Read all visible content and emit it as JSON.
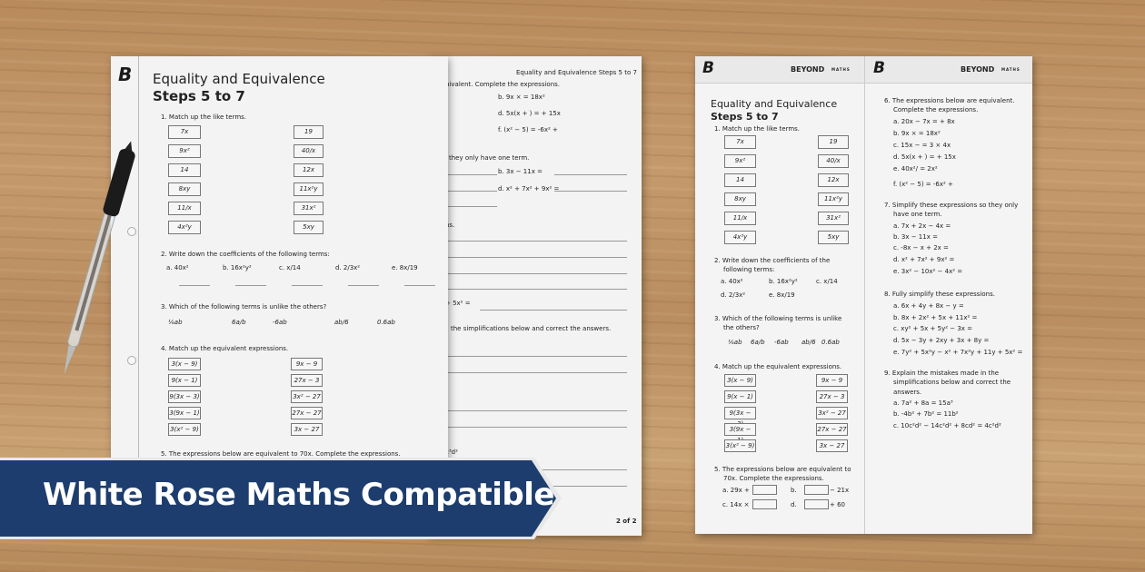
{
  "colors": {
    "banner": "#1d3d6e",
    "paper": "#f3f3f3",
    "wood": "#c49a6c"
  },
  "banner": {
    "text": "White Rose Maths Compatible"
  },
  "brand": {
    "logo": "B",
    "name": "BEYOND",
    "sub": "MATHS"
  },
  "front": {
    "title": "Equality and Equivalence",
    "subtitle": "Steps 5 to 7",
    "q1": "1.  Match up the like terms.",
    "q1_left": [
      "7x",
      "9x²",
      "14",
      "8xy",
      "11/x",
      "4x²y"
    ],
    "q1_right": [
      "19",
      "40/x",
      "12x",
      "11x²y",
      "31x²",
      "5xy"
    ],
    "q2": "2.  Write down the coefficients of the following terms:",
    "q2_terms": [
      "a.  40x²",
      "b.  16x²y²",
      "c.  x/14",
      "d.  2/3x²",
      "e.  8x/19"
    ],
    "q3": "3.  Which of the following terms is unlike the others?",
    "q3_terms": [
      "⅙ab",
      "6a/b",
      "-6ab",
      "ab/6",
      "0.6ab"
    ],
    "q4": "4.  Match up the equivalent expressions.",
    "q4_left": [
      "3(x − 9)",
      "9(x − 1)",
      "9(3x − 3)",
      "3(9x − 1)",
      "3(x² − 9)"
    ],
    "q4_right": [
      "9x − 9",
      "27x − 3",
      "3x² − 27",
      "27x − 27",
      "3x − 27"
    ],
    "q5": "5.  The expressions below are equivalent to 70x. Complete the expressions."
  },
  "back": {
    "header": "Equality and Equivalence Steps 5 to 7",
    "lines": [
      "uivalent. Complete the expressions.",
      "b.  9x ×      = 18x²",
      "d.  5x(x +      ) =      + 15x",
      "f.       (x² − 5) = -6x² +",
      "they only have one term.",
      "b.  3x − 11x =",
      "d.  x² + 7x² + 9x² =",
      "ns.",
      "+ 5x² =",
      "the simplifications below and correct the answers.",
      "c³d²"
    ],
    "page": "2 of 2"
  },
  "spread_left": {
    "title": "Equality and Equivalence",
    "subtitle": "Steps 5 to 7",
    "q1": "1.  Match up the like terms.",
    "q2a": "2.  Write down the coefficients of the",
    "q2b": "following terms:",
    "q2_terms": [
      "a.  40x²",
      "b.  16x²y²",
      "c.  x/14",
      "d.  2/3x²",
      "e.  8x/19"
    ],
    "q3a": "3.  Which of the following terms is unlike",
    "q3b": "the others?",
    "q4": "4.  Match up the equivalent expressions.",
    "q5a": "5.  The expressions below are equivalent to",
    "q5b": "70x. Complete the expressions.",
    "q5_items": [
      "a.  29x +",
      "b.",
      "− 21x",
      "c.  14x ×",
      "d.",
      "+ 60"
    ]
  },
  "spread_right": {
    "q6a": "6.  The expressions below are equivalent.",
    "q6b": "Complete the expressions.",
    "q6_items": [
      "a.  20x − 7x =      + 8x",
      "b.  9x ×      = 18x²",
      "c.  15x −      = 3 × 4x",
      "d.  5x(x +      ) =      + 15x",
      "e.  40x²/      = 2x²",
      "f.       (x² − 5) = -6x² +"
    ],
    "q7a": "7.  Simplify these expressions so they only",
    "q7b": "have one term.",
    "q7_items": [
      "a.  7x + 2x − 4x =",
      "b.  3x − 11x =",
      "c.  -8x − x + 2x =",
      "d.  x² + 7x² + 9x² =",
      "e.  3x² − 10x² − 4x² ="
    ],
    "q8": "8.  Fully simplify these expressions.",
    "q8_items": [
      "a.  6x + 4y + 8x − y =",
      "b.  8x + 2x² + 5x + 11x² =",
      "c.  xy² + 5x + 5y² − 3x =",
      "d.  5x − 3y + 2xy + 3x + 8y =",
      "e.  7y² + 5x²y − x² + 7x²y + 11y + 5x² ="
    ],
    "q9a": "9.  Explain the mistakes made in the",
    "q9b": "simplifications below and correct the",
    "q9c": "answers.",
    "q9_items": [
      "a.  7a² + 8a = 15a³",
      "b.  -4b² + 7b² = 11b²",
      "c.  10c²d² − 14c²d² + 8cd² = 4c²d²"
    ]
  }
}
